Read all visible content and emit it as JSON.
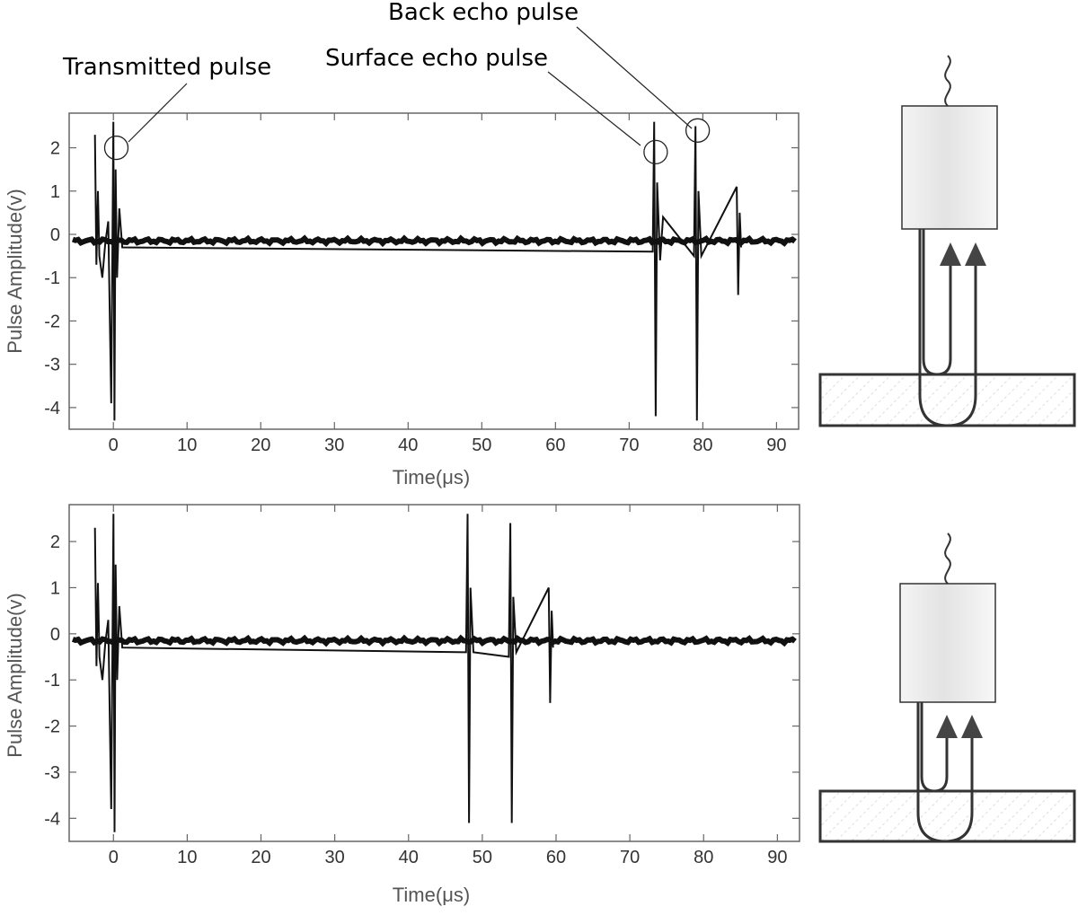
{
  "annotations": {
    "transmitted": "Transmitted pulse",
    "surface": "Surface echo pulse",
    "back": "Back echo pulse"
  },
  "chart_data": [
    {
      "type": "line",
      "xlabel": "Time(μs)",
      "ylabel": "Pulse Amplitude(v)",
      "xlim": [
        -6,
        93
      ],
      "ylim": [
        -4.5,
        2.8
      ],
      "xticks": [
        0,
        10,
        20,
        30,
        40,
        50,
        60,
        70,
        80,
        90
      ],
      "yticks": [
        2,
        1,
        0,
        -1,
        -2,
        -3,
        -4
      ],
      "baseline": -0.15,
      "grid": false,
      "series": [
        {
          "x": [
            -2.5,
            -2.3,
            -2.1,
            -1.9,
            -1.5,
            -1.1,
            -0.7,
            -0.3,
            0,
            0.15,
            0.3,
            0.5,
            0.8,
            1.2,
            73.2,
            73.4,
            73.6,
            73.8,
            74.2,
            74.6,
            78.8,
            79.0,
            79.2,
            79.4,
            79.8,
            84.6,
            84.8,
            85.0,
            85.2
          ],
          "y": [
            2.3,
            -0.7,
            1.0,
            -0.5,
            -1.0,
            -0.2,
            0.3,
            -3.9,
            2.6,
            -4.3,
            1.5,
            -1.0,
            0.6,
            -0.3,
            -0.4,
            2.6,
            -4.2,
            1.2,
            -0.6,
            0.4,
            -0.5,
            2.5,
            -4.3,
            1.0,
            -0.5,
            1.1,
            -1.4,
            0.5,
            -0.3
          ]
        }
      ],
      "markers": [
        {
          "x": 0.4,
          "y": 2.0,
          "label": "transmitted"
        },
        {
          "x": 73.6,
          "y": 1.9,
          "label": "surface"
        },
        {
          "x": 79.3,
          "y": 2.4,
          "label": "back"
        }
      ]
    },
    {
      "type": "line",
      "xlabel": "Time(μs)",
      "ylabel": "Pulse Amplitude(v)",
      "xlim": [
        -6,
        93
      ],
      "ylim": [
        -4.5,
        2.8
      ],
      "xticks": [
        0,
        10,
        20,
        30,
        40,
        50,
        60,
        70,
        80,
        90
      ],
      "yticks": [
        2,
        1,
        0,
        -1,
        -2,
        -3,
        -4
      ],
      "baseline": -0.15,
      "grid": false,
      "series": [
        {
          "x": [
            -2.5,
            -2.3,
            -2.1,
            -1.9,
            -1.5,
            -1.1,
            -0.7,
            -0.3,
            0,
            0.15,
            0.3,
            0.5,
            0.8,
            1.2,
            47.8,
            48.0,
            48.2,
            48.4,
            48.8,
            53.6,
            53.8,
            54.0,
            54.2,
            54.6,
            59.0,
            59.2,
            59.4,
            59.6
          ],
          "y": [
            2.3,
            -0.7,
            1.1,
            -0.5,
            -1.0,
            -0.2,
            0.3,
            -3.8,
            2.6,
            -4.3,
            1.5,
            -1.0,
            0.6,
            -0.3,
            -0.4,
            2.6,
            -4.1,
            1.0,
            -0.4,
            -0.5,
            2.4,
            -4.1,
            0.8,
            -0.4,
            1.0,
            -1.5,
            0.5,
            -0.3
          ]
        }
      ],
      "markers": []
    }
  ],
  "diagram": {
    "top": {
      "inner_arrow_depth": "surface",
      "outer_arrow_depth": "back"
    },
    "bottom": {
      "inner_arrow_depth": "surface",
      "outer_arrow_depth": "back"
    }
  }
}
